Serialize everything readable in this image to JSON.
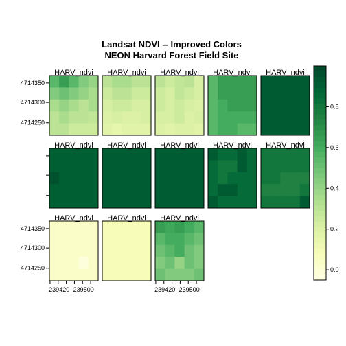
{
  "chart_data": {
    "type": "heatmap",
    "title": "Landsat NDVI -- Improved Colors",
    "subtitle": "NEON Harvard Forest Field Site",
    "grid": {
      "rows": 3,
      "cols": 5
    },
    "cell_grid": {
      "rows": 5,
      "cols": 5
    },
    "x_ticks": [
      "239420",
      "239500"
    ],
    "y_ticks": [
      "4714350",
      "4714300",
      "4714250"
    ],
    "colorbar": {
      "min": -0.05,
      "max": 1.0,
      "ticks": [
        {
          "value": 0.0,
          "label": "0.0"
        },
        {
          "value": 0.2,
          "label": "0.2"
        },
        {
          "value": 0.4,
          "label": "0.4"
        },
        {
          "value": 0.6,
          "label": "0.6"
        },
        {
          "value": 0.8,
          "label": "0.8"
        }
      ],
      "colors": [
        "#ffffe5",
        "#f7fcb9",
        "#d9f0a3",
        "#addd8e",
        "#78c679",
        "#41ab5d",
        "#238443",
        "#006837",
        "#004529"
      ]
    },
    "panels": [
      {
        "label": "HARV_ndvi",
        "values": [
          [
            0.55,
            0.65,
            0.55,
            0.45,
            0.4
          ],
          [
            0.45,
            0.5,
            0.45,
            0.4,
            0.35
          ],
          [
            0.35,
            0.4,
            0.35,
            0.3,
            0.35
          ],
          [
            0.3,
            0.35,
            0.3,
            0.3,
            0.28
          ],
          [
            0.3,
            0.3,
            0.25,
            0.25,
            0.25
          ]
        ]
      },
      {
        "label": "HARV_ndvi",
        "values": [
          [
            0.3,
            0.35,
            0.35,
            0.3,
            0.3
          ],
          [
            0.25,
            0.3,
            0.3,
            0.25,
            0.25
          ],
          [
            0.22,
            0.25,
            0.25,
            0.22,
            0.22
          ],
          [
            0.2,
            0.22,
            0.2,
            0.2,
            0.22
          ],
          [
            0.18,
            0.15,
            0.18,
            0.18,
            0.18
          ]
        ]
      },
      {
        "label": "HARV_ndvi",
        "values": [
          [
            0.3,
            0.25,
            0.28,
            0.3,
            0.22
          ],
          [
            0.25,
            0.22,
            0.28,
            0.25,
            0.22
          ],
          [
            0.25,
            0.22,
            0.25,
            0.22,
            0.2
          ],
          [
            0.22,
            0.22,
            0.25,
            0.2,
            0.22
          ],
          [
            0.2,
            0.18,
            0.2,
            0.2,
            0.18
          ]
        ]
      },
      {
        "label": "HARV_ndvi",
        "values": [
          [
            0.55,
            0.65,
            0.65,
            0.65,
            0.65
          ],
          [
            0.55,
            0.65,
            0.65,
            0.65,
            0.65
          ],
          [
            0.55,
            0.6,
            0.65,
            0.65,
            0.65
          ],
          [
            0.55,
            0.6,
            0.6,
            0.6,
            0.6
          ],
          [
            0.55,
            0.6,
            0.6,
            0.55,
            0.55
          ]
        ]
      },
      {
        "label": "HARV_ndvi",
        "values": [
          [
            0.92,
            0.92,
            0.92,
            0.92,
            0.92
          ],
          [
            0.92,
            0.92,
            0.92,
            0.92,
            0.92
          ],
          [
            0.92,
            0.92,
            0.92,
            0.92,
            0.92
          ],
          [
            0.92,
            0.92,
            0.92,
            0.92,
            0.92
          ],
          [
            0.92,
            0.92,
            0.92,
            0.92,
            0.92
          ]
        ]
      },
      {
        "label": "HARV_ndvi",
        "values": [
          [
            0.9,
            0.9,
            0.9,
            0.9,
            0.9
          ],
          [
            0.9,
            0.9,
            0.9,
            0.9,
            0.9
          ],
          [
            0.95,
            0.9,
            0.9,
            0.9,
            0.9
          ],
          [
            0.9,
            0.9,
            0.9,
            0.9,
            0.9
          ],
          [
            0.9,
            0.9,
            0.9,
            0.9,
            0.9
          ]
        ]
      },
      {
        "label": "HARV_ndvi",
        "values": [
          [
            0.91,
            0.91,
            0.91,
            0.91,
            0.91
          ],
          [
            0.91,
            0.91,
            0.91,
            0.91,
            0.91
          ],
          [
            0.91,
            0.91,
            0.91,
            0.91,
            0.91
          ],
          [
            0.91,
            0.91,
            0.91,
            0.91,
            0.91
          ],
          [
            0.91,
            0.91,
            0.91,
            0.91,
            0.91
          ]
        ]
      },
      {
        "label": "HARV_ndvi",
        "values": [
          [
            0.91,
            0.91,
            0.91,
            0.91,
            0.91
          ],
          [
            0.91,
            0.91,
            0.91,
            0.91,
            0.91
          ],
          [
            0.91,
            0.91,
            0.91,
            0.91,
            0.91
          ],
          [
            0.91,
            0.91,
            0.91,
            0.91,
            0.91
          ],
          [
            0.91,
            0.91,
            0.91,
            0.91,
            0.91
          ]
        ]
      },
      {
        "label": "HARV_ndvi",
        "values": [
          [
            0.92,
            0.85,
            0.85,
            0.92,
            0.85
          ],
          [
            0.85,
            0.8,
            0.8,
            0.92,
            0.85
          ],
          [
            0.85,
            0.8,
            0.85,
            0.85,
            0.85
          ],
          [
            0.85,
            0.92,
            0.92,
            0.85,
            0.85
          ],
          [
            0.92,
            0.85,
            0.85,
            0.85,
            0.85
          ]
        ]
      },
      {
        "label": "HARV_ndvi",
        "values": [
          [
            0.8,
            0.8,
            0.8,
            0.8,
            0.8
          ],
          [
            0.8,
            0.8,
            0.8,
            0.8,
            0.8
          ],
          [
            0.8,
            0.8,
            0.75,
            0.75,
            0.75
          ],
          [
            0.75,
            0.75,
            0.75,
            0.75,
            0.8
          ],
          [
            0.8,
            0.8,
            0.8,
            0.8,
            0.92
          ]
        ]
      },
      {
        "label": "HARV_ndvi",
        "values": [
          [
            0.04,
            0.04,
            0.04,
            0.04,
            0.04
          ],
          [
            0.04,
            0.04,
            0.04,
            0.04,
            0.04
          ],
          [
            0.04,
            0.04,
            0.04,
            0.04,
            0.04
          ],
          [
            0.04,
            0.04,
            0.04,
            -0.02,
            0.04
          ],
          [
            0.04,
            0.04,
            0.04,
            0.04,
            0.04
          ]
        ]
      },
      {
        "label": "HARV_ndvi",
        "values": [
          [
            0.08,
            0.08,
            0.08,
            0.08,
            0.08
          ],
          [
            0.08,
            0.08,
            0.08,
            0.08,
            0.08
          ],
          [
            0.08,
            0.08,
            0.08,
            0.08,
            0.08
          ],
          [
            0.08,
            0.08,
            0.08,
            0.08,
            0.08
          ],
          [
            0.08,
            0.08,
            0.08,
            0.08,
            0.08
          ]
        ]
      },
      {
        "label": "HARV_ndvi",
        "values": [
          [
            0.65,
            0.62,
            0.65,
            0.6,
            0.55
          ],
          [
            0.55,
            0.6,
            0.6,
            0.55,
            0.5
          ],
          [
            0.5,
            0.55,
            0.6,
            0.5,
            0.45
          ],
          [
            0.45,
            0.5,
            0.4,
            0.5,
            0.45
          ],
          [
            0.5,
            0.45,
            0.45,
            0.45,
            0.5
          ]
        ]
      }
    ]
  }
}
